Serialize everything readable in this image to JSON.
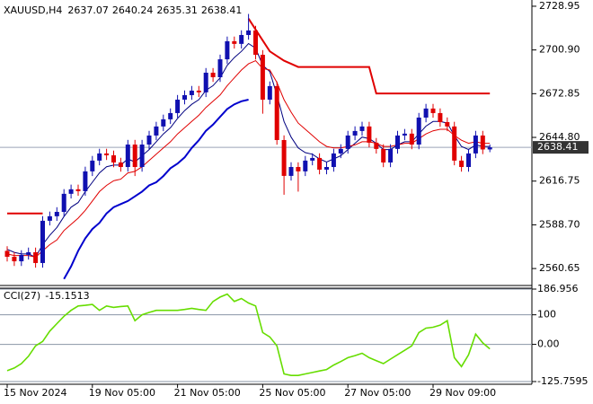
{
  "chart_data": {
    "type": "candlestick",
    "symbol": "XAUUSD,H4",
    "categories": [
      "15 Nov 2024",
      null,
      null,
      null,
      null,
      null,
      null,
      null,
      null,
      null,
      null,
      null,
      "19 Nov 05:00",
      null,
      null,
      null,
      null,
      null,
      null,
      null,
      null,
      null,
      null,
      null,
      "21 Nov 05:00",
      null,
      null,
      null,
      null,
      null,
      null,
      null,
      null,
      null,
      null,
      null,
      "25 Nov 05:00",
      null,
      null,
      null,
      null,
      null,
      null,
      null,
      null,
      null,
      null,
      null,
      "27 Nov 05:00",
      null,
      null,
      null,
      null,
      null,
      null,
      null,
      null,
      null,
      null,
      null,
      "29 Nov 09:00",
      null,
      null,
      null,
      null,
      null,
      null,
      null,
      null
    ],
    "open": [
      2572.0,
      2568.2,
      2565.3,
      2569.4,
      2571.1,
      2564.2,
      2591.3,
      2594.2,
      2597.0,
      2608.6,
      2611.5,
      2610.3,
      2623.0,
      2629.9,
      2634.5,
      2633.3,
      2628.7,
      2625.8,
      2640.2,
      2625.8,
      2640.2,
      2646.0,
      2651.8,
      2656.4,
      2660.4,
      2669.0,
      2671.9,
      2674.8,
      2673.7,
      2686.3,
      2683.4,
      2694.9,
      2706.5,
      2704.8,
      2710.5,
      2713.4,
      2697.8,
      2669.0,
      2677.7,
      2643.1,
      2620.1,
      2625.8,
      2623.0,
      2629.9,
      2631.6,
      2624.1,
      2625.8,
      2634.5,
      2637.4,
      2646.0,
      2648.9,
      2651.8,
      2641.4,
      2637.4,
      2628.7,
      2637.4,
      2646.0,
      2647.2,
      2640.2,
      2657.5,
      2663.3,
      2660.4,
      2654.6,
      2651.8,
      2629.9,
      2625.8,
      2634.5,
      2646.0,
      2637.07
    ],
    "high": [
      2575.0,
      2571.2,
      2572.4,
      2574.1,
      2574.1,
      2594.3,
      2597.2,
      2600.0,
      2611.6,
      2614.5,
      2614.5,
      2626.0,
      2632.9,
      2637.5,
      2637.5,
      2636.3,
      2631.7,
      2643.2,
      2643.2,
      2643.2,
      2649.0,
      2654.8,
      2659.4,
      2663.4,
      2672.0,
      2674.9,
      2677.8,
      2677.8,
      2689.3,
      2689.3,
      2697.9,
      2709.5,
      2709.5,
      2713.5,
      2724.0,
      2716.4,
      2700.8,
      2680.7,
      2680.7,
      2646.1,
      2628.8,
      2628.8,
      2632.9,
      2634.6,
      2634.6,
      2628.8,
      2637.5,
      2640.4,
      2649.0,
      2651.9,
      2654.8,
      2654.8,
      2644.4,
      2640.4,
      2640.4,
      2649.0,
      2650.2,
      2650.2,
      2660.5,
      2666.3,
      2666.3,
      2663.4,
      2657.6,
      2654.8,
      2632.9,
      2637.5,
      2649.0,
      2649.0,
      2640.24
    ],
    "low": [
      2565.2,
      2562.3,
      2562.3,
      2566.4,
      2561.2,
      2561.2,
      2588.3,
      2591.2,
      2594.0,
      2605.6,
      2607.3,
      2607.3,
      2620.0,
      2626.9,
      2630.3,
      2625.7,
      2622.8,
      2622.8,
      2620.0,
      2622.8,
      2637.2,
      2643.0,
      2648.8,
      2653.4,
      2657.4,
      2666.0,
      2668.9,
      2670.7,
      2670.7,
      2680.4,
      2680.4,
      2691.9,
      2701.8,
      2701.8,
      2707.5,
      2694.8,
      2660.0,
      2666.0,
      2640.1,
      2608.0,
      2617.1,
      2610.0,
      2620.0,
      2626.9,
      2621.1,
      2621.1,
      2622.8,
      2631.5,
      2634.4,
      2643.0,
      2645.9,
      2638.4,
      2634.4,
      2625.7,
      2625.7,
      2634.4,
      2643.0,
      2637.2,
      2637.2,
      2654.5,
      2657.4,
      2651.6,
      2648.8,
      2626.9,
      2622.8,
      2622.8,
      2631.5,
      2634.07,
      2635.31
    ],
    "close": [
      2568.2,
      2565.3,
      2569.4,
      2571.1,
      2564.2,
      2591.3,
      2594.2,
      2597.0,
      2608.6,
      2611.5,
      2610.3,
      2623.0,
      2629.9,
      2634.5,
      2633.3,
      2628.7,
      2625.8,
      2640.2,
      2625.8,
      2640.2,
      2646.0,
      2651.8,
      2656.4,
      2660.4,
      2669.0,
      2671.9,
      2674.8,
      2673.7,
      2686.3,
      2683.4,
      2694.9,
      2706.5,
      2704.8,
      2710.5,
      2713.4,
      2697.8,
      2669.0,
      2677.7,
      2643.1,
      2620.1,
      2625.8,
      2623.0,
      2629.9,
      2631.6,
      2624.1,
      2625.8,
      2634.5,
      2637.4,
      2646.0,
      2648.9,
      2651.8,
      2641.4,
      2637.4,
      2628.7,
      2637.4,
      2646.0,
      2647.2,
      2640.2,
      2657.5,
      2663.3,
      2660.4,
      2654.6,
      2651.8,
      2629.9,
      2625.8,
      2634.5,
      2646.0,
      2637.07,
      2638.41
    ],
    "up_color": "#1010b0",
    "down_color": "#e00000",
    "ylim": [
      2551.5,
      2731.8
    ],
    "yticks": [
      2728.95,
      {
        "value": 2700.9,
        "label": "2700.90"
      },
      2672.85,
      {
        "value": 2644.8,
        "label": "2644.80"
      },
      2616.75,
      {
        "value": 2588.7,
        "label": "2588.70"
      },
      2560.65
    ],
    "overlays": [
      {
        "color": "#000080",
        "width": 1,
        "values": [
          2573,
          2571,
          2570,
          2570,
          2568,
          2576,
          2582,
          2587,
          2594,
          2600,
          2603,
          2610,
          2616,
          2622,
          2626,
          2627,
          2627,
          2631,
          2629,
          2633,
          2637,
          2642,
          2647,
          2651,
          2657,
          2662,
          2666,
          2669,
          2675,
          2678,
          2683,
          2691,
          2696,
          2700,
          2705,
          2702,
          2691,
          2687,
          2672,
          2655,
          2645,
          2638,
          2635,
          2634,
          2631,
          2629,
          2631,
          2633,
          2637,
          2641,
          2645,
          2644,
          2641,
          2637,
          2637,
          2640,
          2642,
          2642,
          2647,
          2652,
          2655,
          2655,
          2654,
          2646,
          2639,
          2637,
          2640,
          2639,
          2639
        ]
      },
      {
        "color": "#e00000",
        "width": 1,
        "values": [
          2570,
          2569,
          2569,
          2569,
          2568,
          2572,
          2576,
          2579,
          2585,
          2589,
          2593,
          2598,
          2604,
          2610,
          2614,
          2617,
          2618,
          2622,
          2623,
          2626,
          2630,
          2634,
          2638,
          2642,
          2647,
          2651,
          2655,
          2659,
          2664,
          2668,
          2672,
          2678,
          2683,
          2688,
          2692,
          2694,
          2689,
          2688,
          2680,
          2669,
          2661,
          2654,
          2650,
          2646,
          2642,
          2639,
          2638,
          2638,
          2639,
          2640,
          2642,
          2642,
          2641,
          2639,
          2639,
          2640,
          2641,
          2641,
          2644,
          2647,
          2649,
          2650,
          2650,
          2646,
          2643,
          2641,
          2642,
          2641,
          2641
        ]
      },
      {
        "color": "#0000cd",
        "width": 2,
        "values": [
          null,
          null,
          null,
          null,
          null,
          null,
          null,
          null,
          2554,
          2562,
          2572,
          2580,
          2586,
          2590,
          2596,
          2600,
          2602,
          2604,
          2607,
          2610,
          2614,
          2616,
          2620,
          2625,
          2628,
          2632,
          2638,
          2643,
          2649,
          2653,
          2658,
          2663,
          2666,
          2668,
          2669,
          null,
          null,
          null,
          null,
          null,
          null,
          null,
          null,
          null,
          null,
          null,
          null,
          null,
          null,
          null,
          null,
          null,
          null,
          null,
          null,
          null,
          null,
          null,
          null,
          null,
          null,
          null,
          null,
          null,
          null,
          null,
          null,
          null,
          null
        ]
      },
      {
        "color": "#e00000",
        "width": 2,
        "values": [
          2596,
          2596,
          2596,
          2596,
          2596,
          2596,
          null,
          null,
          null,
          null,
          null,
          null,
          null,
          null,
          null,
          null,
          null,
          null,
          null,
          null,
          null,
          null,
          null,
          null,
          null,
          null,
          null,
          null,
          null,
          null,
          null,
          null,
          null,
          null,
          2721,
          2714,
          2707,
          2700,
          2697,
          2694,
          2692,
          2690,
          2690,
          2690,
          2690,
          2690,
          2690,
          2690,
          2690,
          2690,
          2690,
          2690,
          2673,
          2673,
          2673,
          2673,
          2673,
          2673,
          2673,
          2673,
          2673,
          2673,
          2673,
          2673,
          2673,
          2673,
          2673,
          2673,
          2673
        ]
      }
    ],
    "cci": {
      "label": "CCI(27)",
      "color": "#66dd00",
      "values": [
        -89,
        -80,
        -65,
        -40,
        -5,
        10,
        45,
        70,
        95,
        115,
        130,
        132,
        135,
        115,
        130,
        125,
        128,
        130,
        80,
        100,
        108,
        115,
        115,
        115,
        115,
        118,
        122,
        118,
        115,
        145,
        160,
        170,
        145,
        155,
        140,
        130,
        40,
        25,
        -5,
        -100,
        -105,
        -105,
        -100,
        -95,
        -90,
        -85,
        -70,
        -58,
        -45,
        -38,
        -30,
        -45,
        -55,
        -65,
        -50,
        -35,
        -20,
        -5,
        40,
        55,
        58,
        65,
        80,
        -45,
        -75,
        -35,
        35,
        5,
        -15.1513
      ],
      "ylim": [
        -125.7595,
        186.956
      ],
      "yticks": [
        186.956,
        100,
        {
          "value": 0,
          "label": "0.00"
        },
        -125.7595
      ]
    }
  }
}
